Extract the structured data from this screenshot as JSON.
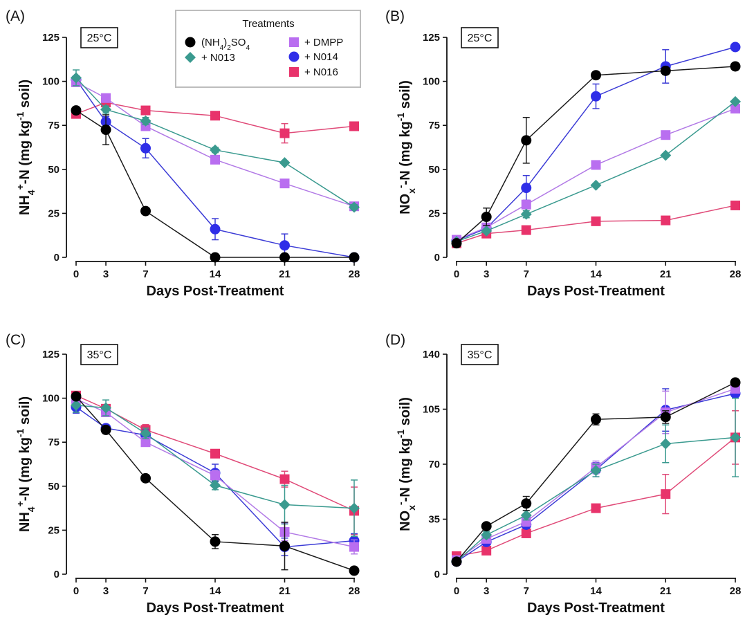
{
  "legend": {
    "title": "Treatments",
    "entries": [
      {
        "key": "as",
        "parts": [
          {
            "t": "(NH"
          },
          {
            "t": "4",
            "sub": true
          },
          {
            "t": ")"
          },
          {
            "t": "2",
            "sub": true
          },
          {
            "t": "SO"
          },
          {
            "t": "4",
            "sub": true
          }
        ]
      },
      {
        "key": "n013",
        "parts": [
          {
            "t": "+ N013"
          }
        ]
      },
      {
        "key": "dmpp",
        "parts": [
          {
            "t": "+ DMPP"
          }
        ]
      },
      {
        "key": "n014",
        "parts": [
          {
            "t": "+ N014"
          }
        ]
      },
      {
        "key": "n016",
        "parts": [
          {
            "t": "+ N016"
          }
        ]
      }
    ]
  },
  "series_styles": {
    "as": {
      "color": "#000000",
      "line": "#1a1a1a",
      "marker": "circle"
    },
    "n013": {
      "color": "#3a9a8f",
      "line": "#3a9a8f",
      "marker": "diamond"
    },
    "dmpp": {
      "color": "#b96ef0",
      "line": "#b27ae6",
      "marker": "square"
    },
    "n014": {
      "color": "#2f2ee8",
      "line": "#3b3bd6",
      "marker": "circle"
    },
    "n016": {
      "color": "#e8336b",
      "line": "#e04a78",
      "marker": "square"
    }
  },
  "chart_data": [
    {
      "type": "line",
      "panel_label": "(A)",
      "temperature": "25°C",
      "xlabel": "Days Post-Treatment",
      "ylabel": [
        {
          "t": "NH"
        },
        {
          "t": "4",
          "sub": true
        },
        {
          "t": "+",
          "sup": true
        },
        {
          "t": "-N (mg kg"
        },
        {
          "t": "-1",
          "sup": true
        },
        {
          "t": " soil)"
        }
      ],
      "x": [
        0,
        3,
        7,
        14,
        21,
        28
      ],
      "x_ticks": [
        0,
        3,
        7,
        14,
        21,
        28
      ],
      "ylim": [
        0,
        125
      ],
      "y_ticks": [
        0,
        25,
        50,
        75,
        100,
        125
      ],
      "series": [
        {
          "key": "as",
          "values": [
            83.5,
            72.5,
            26.3,
            0,
            0,
            0
          ],
          "errors": [
            1,
            8.5,
            1,
            0,
            0,
            0
          ]
        },
        {
          "key": "n013",
          "values": [
            102,
            84,
            77.5,
            61,
            53.8,
            28.5
          ],
          "errors": [
            4.5,
            2,
            2,
            1.5,
            1,
            1.5
          ]
        },
        {
          "key": "dmpp",
          "values": [
            99.5,
            90.5,
            74.5,
            55.5,
            42,
            29
          ],
          "errors": [
            2,
            1.5,
            2,
            1.5,
            1,
            1
          ]
        },
        {
          "key": "n014",
          "values": [
            101,
            77,
            62,
            16,
            6.8,
            0
          ],
          "errors": [
            2,
            3,
            5.5,
            6,
            6.5,
            0
          ]
        },
        {
          "key": "n016",
          "values": [
            81.5,
            88,
            83.5,
            80.5,
            70.5,
            74.5
          ],
          "errors": [
            1.5,
            1.5,
            1.5,
            1,
            5.5,
            1
          ]
        }
      ]
    },
    {
      "type": "line",
      "panel_label": "(B)",
      "temperature": "25°C",
      "xlabel": "Days Post-Treatment",
      "ylabel": [
        {
          "t": "NO"
        },
        {
          "t": "x",
          "sub": true
        },
        {
          "t": "-",
          "sup": true
        },
        {
          "t": "-N (mg kg"
        },
        {
          "t": "-1",
          "sup": true
        },
        {
          "t": " soil)"
        }
      ],
      "x": [
        0,
        3,
        7,
        14,
        21,
        28
      ],
      "x_ticks": [
        0,
        3,
        7,
        14,
        21,
        28
      ],
      "ylim": [
        0,
        125
      ],
      "y_ticks": [
        0,
        25,
        50,
        75,
        100,
        125
      ],
      "series": [
        {
          "key": "as",
          "values": [
            8,
            23,
            66.5,
            103.5,
            106,
            108.5
          ],
          "errors": [
            1,
            5,
            13,
            1,
            2,
            1
          ]
        },
        {
          "key": "n013",
          "values": [
            9,
            15,
            24.5,
            41,
            58,
            88.5
          ],
          "errors": [
            1,
            1,
            2,
            1,
            1,
            1
          ]
        },
        {
          "key": "dmpp",
          "values": [
            10,
            17,
            30,
            52.5,
            69.5,
            84.5
          ],
          "errors": [
            1,
            1,
            2,
            1,
            1,
            1
          ]
        },
        {
          "key": "n014",
          "values": [
            9.5,
            16.5,
            39.5,
            91.5,
            108.5,
            119.5
          ],
          "errors": [
            1,
            1.5,
            7,
            7,
            9.5,
            1
          ]
        },
        {
          "key": "n016",
          "values": [
            8,
            13.5,
            15.5,
            20.5,
            21,
            29.5
          ],
          "errors": [
            1,
            1,
            1,
            1,
            1,
            1
          ]
        }
      ]
    },
    {
      "type": "line",
      "panel_label": "(C)",
      "temperature": "35°C",
      "xlabel": "Days Post-Treatment",
      "ylabel": [
        {
          "t": "NH"
        },
        {
          "t": "4",
          "sub": true
        },
        {
          "t": "+",
          "sup": true
        },
        {
          "t": "-N (mg kg"
        },
        {
          "t": "-1",
          "sup": true
        },
        {
          "t": " soil)"
        }
      ],
      "x": [
        0,
        3,
        7,
        14,
        21,
        28
      ],
      "x_ticks": [
        0,
        3,
        7,
        14,
        21,
        28
      ],
      "ylim": [
        0,
        125
      ],
      "y_ticks": [
        0,
        25,
        50,
        75,
        100,
        125
      ],
      "series": [
        {
          "key": "as",
          "values": [
            101,
            82,
            54.5,
            18.5,
            16,
            2
          ],
          "errors": [
            1,
            2,
            1,
            4,
            13.5,
            1
          ]
        },
        {
          "key": "n013",
          "values": [
            96,
            94.5,
            80,
            50.5,
            39.5,
            37.5
          ],
          "errors": [
            4,
            4.5,
            3,
            2.5,
            11,
            16
          ]
        },
        {
          "key": "dmpp",
          "values": [
            99.5,
            92,
            75,
            56,
            24,
            15.5
          ],
          "errors": [
            2,
            2,
            2,
            3,
            5,
            4
          ]
        },
        {
          "key": "n014",
          "values": [
            95,
            83,
            79,
            57.5,
            15.5,
            19
          ],
          "errors": [
            3.5,
            2,
            3,
            5,
            5,
            4
          ]
        },
        {
          "key": "n016",
          "values": [
            101.5,
            94,
            82,
            68.5,
            54,
            36
          ],
          "errors": [
            1.5,
            2,
            3,
            1.5,
            4.5,
            13.5
          ]
        }
      ]
    },
    {
      "type": "line",
      "panel_label": "(D)",
      "temperature": "35°C",
      "xlabel": "Days Post-Treatment",
      "ylabel": [
        {
          "t": "NO"
        },
        {
          "t": "x",
          "sub": true
        },
        {
          "t": "-",
          "sup": true
        },
        {
          "t": "-N (mg kg"
        },
        {
          "t": "-1",
          "sup": true
        },
        {
          "t": " soil)"
        }
      ],
      "x": [
        0,
        3,
        7,
        14,
        21,
        28
      ],
      "x_ticks": [
        0,
        3,
        7,
        14,
        21,
        28
      ],
      "ylim": [
        0,
        140
      ],
      "y_ticks": [
        0,
        35,
        70,
        105,
        140
      ],
      "series": [
        {
          "key": "as",
          "values": [
            8,
            30.5,
            45,
            98.5,
            100,
            122
          ],
          "errors": [
            1,
            1.5,
            4.5,
            3.5,
            4,
            1.5
          ]
        },
        {
          "key": "n013",
          "values": [
            8,
            25,
            37.5,
            66,
            83,
            87
          ],
          "errors": [
            1,
            2,
            3,
            4,
            12,
            25
          ]
        },
        {
          "key": "dmpp",
          "values": [
            9,
            22.5,
            33.5,
            68,
            103,
            118
          ],
          "errors": [
            1,
            2,
            3,
            4,
            13.5,
            2
          ]
        },
        {
          "key": "n014",
          "values": [
            8,
            20.5,
            31.5,
            66.5,
            104.5,
            115
          ],
          "errors": [
            1,
            1.5,
            2.5,
            4.5,
            13.5,
            3
          ]
        },
        {
          "key": "n016",
          "values": [
            11.5,
            15,
            26,
            42,
            51,
            87
          ],
          "errors": [
            1,
            1.5,
            2,
            1.5,
            12.5,
            17
          ]
        }
      ]
    }
  ]
}
